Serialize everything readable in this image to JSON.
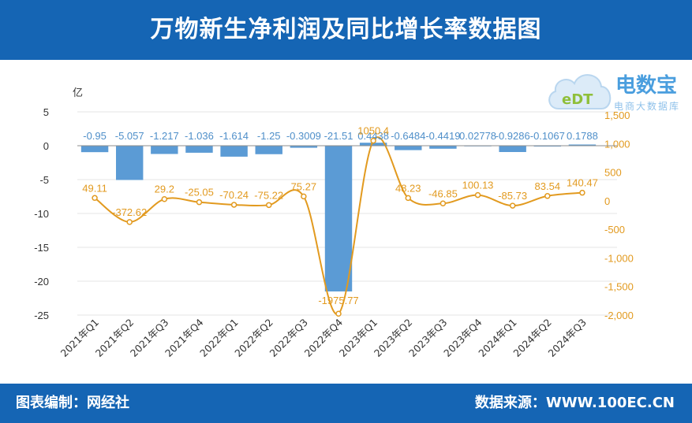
{
  "header": {
    "title": "万物新生净利润及同比增长率数据图"
  },
  "footer": {
    "left": "图表编制：网经社",
    "right": "数据来源：WWW.100EC.CN"
  },
  "logo": {
    "brand": "电数宝",
    "sub": "电商大数据库",
    "mark": "eDT"
  },
  "colors": {
    "bar": "#5b9bd5",
    "line": "#e29a1f",
    "banner": "#1565b4",
    "grid": "#e6e6e6",
    "axis_text": "#333333"
  },
  "chart_data": {
    "type": "bar",
    "categories": [
      "2021年Q1",
      "2021年Q2",
      "2021年Q3",
      "2021年Q4",
      "2022年Q1",
      "2022年Q2",
      "2022年Q3",
      "2022年Q4",
      "2023年Q1",
      "2023年Q2",
      "2023年Q3",
      "2023年Q4",
      "2024年Q1",
      "2024年Q2",
      "2024年Q3"
    ],
    "series": [
      {
        "type": "bar",
        "values": [
          -0.95,
          -5.057,
          -1.217,
          -1.036,
          -1.614,
          -1.25,
          -0.3009,
          -21.51,
          0.4438,
          -0.6484,
          -0.4419,
          0.02778,
          -0.9286,
          -0.1067,
          0.1788
        ],
        "labels": [
          "-0.95",
          "-5.057",
          "-1.217",
          "-1.036",
          "-1.614",
          "-1.25",
          "-0.3009",
          "-21.51",
          "0.4438",
          "-0.6484",
          "-0.4419",
          "0.02778",
          "-0.9286",
          "-0.1067",
          "0.1788"
        ]
      },
      {
        "type": "line",
        "values": [
          49.11,
          -372.62,
          29.2,
          -25.05,
          -70.24,
          -75.22,
          75.27,
          -1975.77,
          1050.4,
          48.23,
          -46.85,
          100.13,
          -85.73,
          83.54,
          140.47
        ],
        "labels": [
          "49.11",
          "-372.62",
          "29.2",
          "-25.05",
          "-70.24",
          "-75.22",
          "75.27",
          "-1975.77",
          "1050.4",
          "48.23",
          "-46.85",
          "100.13",
          "-85.73",
          "83.54",
          "140.47"
        ]
      }
    ],
    "ylabel": "亿",
    "y2label": "%",
    "ylim": [
      -25,
      5
    ],
    "yticks": [
      "5",
      "0",
      "-5",
      "-10",
      "-15",
      "-20",
      "-25"
    ],
    "y2lim": [
      -2000,
      1500
    ],
    "y2ticks": [
      "1,500",
      "1,000",
      "500",
      "0",
      "-500",
      "-1,000",
      "-1,500",
      "-2,000"
    ],
    "grid": true
  }
}
